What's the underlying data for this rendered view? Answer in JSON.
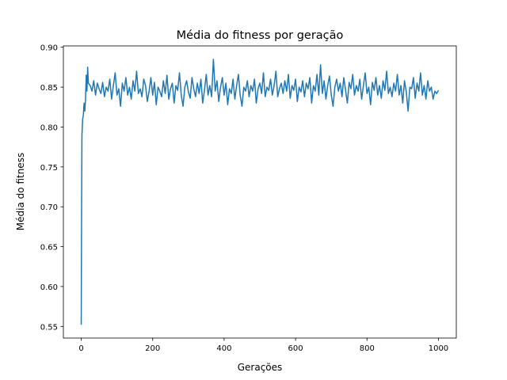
{
  "chart_data": {
    "type": "line",
    "title": "Média do fitness por geração",
    "xlabel": "Gerações",
    "ylabel": "Média do fitness",
    "x": [
      0,
      1,
      2,
      3,
      4,
      6,
      8,
      10,
      12,
      14,
      16,
      18,
      20,
      25,
      30,
      35,
      40,
      45,
      50,
      55,
      60,
      65,
      70,
      75,
      80,
      85,
      90,
      95,
      100,
      105,
      110,
      115,
      120,
      125,
      130,
      135,
      140,
      145,
      150,
      155,
      160,
      165,
      170,
      175,
      180,
      185,
      190,
      195,
      200,
      205,
      210,
      215,
      220,
      225,
      230,
      235,
      240,
      245,
      250,
      255,
      260,
      265,
      270,
      275,
      280,
      285,
      290,
      295,
      300,
      305,
      310,
      315,
      320,
      325,
      330,
      335,
      340,
      345,
      350,
      355,
      360,
      365,
      370,
      375,
      380,
      385,
      390,
      395,
      400,
      405,
      410,
      415,
      420,
      425,
      430,
      435,
      440,
      445,
      450,
      455,
      460,
      465,
      470,
      475,
      480,
      485,
      490,
      495,
      500,
      505,
      510,
      515,
      520,
      525,
      530,
      535,
      540,
      545,
      550,
      555,
      560,
      565,
      570,
      575,
      580,
      585,
      590,
      595,
      600,
      605,
      610,
      615,
      620,
      625,
      630,
      635,
      640,
      645,
      650,
      655,
      660,
      665,
      670,
      675,
      680,
      685,
      690,
      695,
      700,
      705,
      710,
      715,
      720,
      725,
      730,
      735,
      740,
      745,
      750,
      755,
      760,
      765,
      770,
      775,
      780,
      785,
      790,
      795,
      800,
      805,
      810,
      815,
      820,
      825,
      830,
      835,
      840,
      845,
      850,
      855,
      860,
      865,
      870,
      875,
      880,
      885,
      890,
      895,
      900,
      905,
      910,
      915,
      920,
      925,
      930,
      935,
      940,
      945,
      950,
      955,
      960,
      965,
      970,
      975,
      980,
      985,
      990,
      995,
      1000
    ],
    "series": [
      {
        "name": "fitness",
        "color": "#1f77b4",
        "values": [
          0.552,
          0.7,
          0.79,
          0.8,
          0.81,
          0.815,
          0.83,
          0.82,
          0.835,
          0.865,
          0.845,
          0.875,
          0.855,
          0.852,
          0.845,
          0.858,
          0.84,
          0.855,
          0.848,
          0.842,
          0.856,
          0.838,
          0.85,
          0.845,
          0.86,
          0.835,
          0.852,
          0.868,
          0.84,
          0.848,
          0.826,
          0.855,
          0.845,
          0.862,
          0.84,
          0.85,
          0.835,
          0.858,
          0.845,
          0.87,
          0.842,
          0.848,
          0.838,
          0.86,
          0.852,
          0.832,
          0.845,
          0.862,
          0.84,
          0.856,
          0.828,
          0.85,
          0.845,
          0.838,
          0.858,
          0.842,
          0.865,
          0.835,
          0.848,
          0.855,
          0.83,
          0.852,
          0.846,
          0.868,
          0.84,
          0.826,
          0.85,
          0.858,
          0.844,
          0.836,
          0.862,
          0.848,
          0.838,
          0.855,
          0.842,
          0.86,
          0.83,
          0.846,
          0.866,
          0.84,
          0.852,
          0.838,
          0.885,
          0.845,
          0.858,
          0.832,
          0.85,
          0.862,
          0.84,
          0.855,
          0.828,
          0.848,
          0.842,
          0.86,
          0.835,
          0.852,
          0.866,
          0.84,
          0.826,
          0.85,
          0.845,
          0.858,
          0.838,
          0.852,
          0.845,
          0.86,
          0.83,
          0.848,
          0.855,
          0.842,
          0.868,
          0.838,
          0.85,
          0.846,
          0.86,
          0.84,
          0.852,
          0.87,
          0.838,
          0.848,
          0.855,
          0.842,
          0.858,
          0.845,
          0.866,
          0.836,
          0.852,
          0.846,
          0.86,
          0.832,
          0.85,
          0.844,
          0.858,
          0.838,
          0.855,
          0.848,
          0.862,
          0.83,
          0.852,
          0.845,
          0.866,
          0.84,
          0.878,
          0.842,
          0.858,
          0.835,
          0.852,
          0.864,
          0.84,
          0.826,
          0.85,
          0.86,
          0.845,
          0.855,
          0.838,
          0.862,
          0.846,
          0.83,
          0.856,
          0.848,
          0.866,
          0.84,
          0.852,
          0.845,
          0.86,
          0.835,
          0.852,
          0.868,
          0.842,
          0.85,
          0.828,
          0.856,
          0.846,
          0.862,
          0.84,
          0.852,
          0.836,
          0.858,
          0.846,
          0.87,
          0.842,
          0.85,
          0.838,
          0.855,
          0.845,
          0.866,
          0.84,
          0.852,
          0.83,
          0.858,
          0.844,
          0.82,
          0.85,
          0.848,
          0.862,
          0.836,
          0.855,
          0.845,
          0.868,
          0.84,
          0.852,
          0.835,
          0.858,
          0.845,
          0.85,
          0.835,
          0.845,
          0.842,
          0.846
        ]
      }
    ],
    "xlim": [
      -50,
      1050
    ],
    "xticks": [
      0,
      200,
      400,
      600,
      800,
      1000
    ],
    "ylim": [
      0.5354,
      0.9017
    ],
    "yticks": [
      0.55,
      {
        "value": 0.6,
        "label": "0.60"
      },
      0.65,
      {
        "value": 0.7,
        "label": "0.70"
      },
      0.75,
      {
        "value": 0.8,
        "label": "0.80"
      },
      0.85,
      {
        "value": 0.9,
        "label": "0.90"
      }
    ],
    "grid": false
  }
}
